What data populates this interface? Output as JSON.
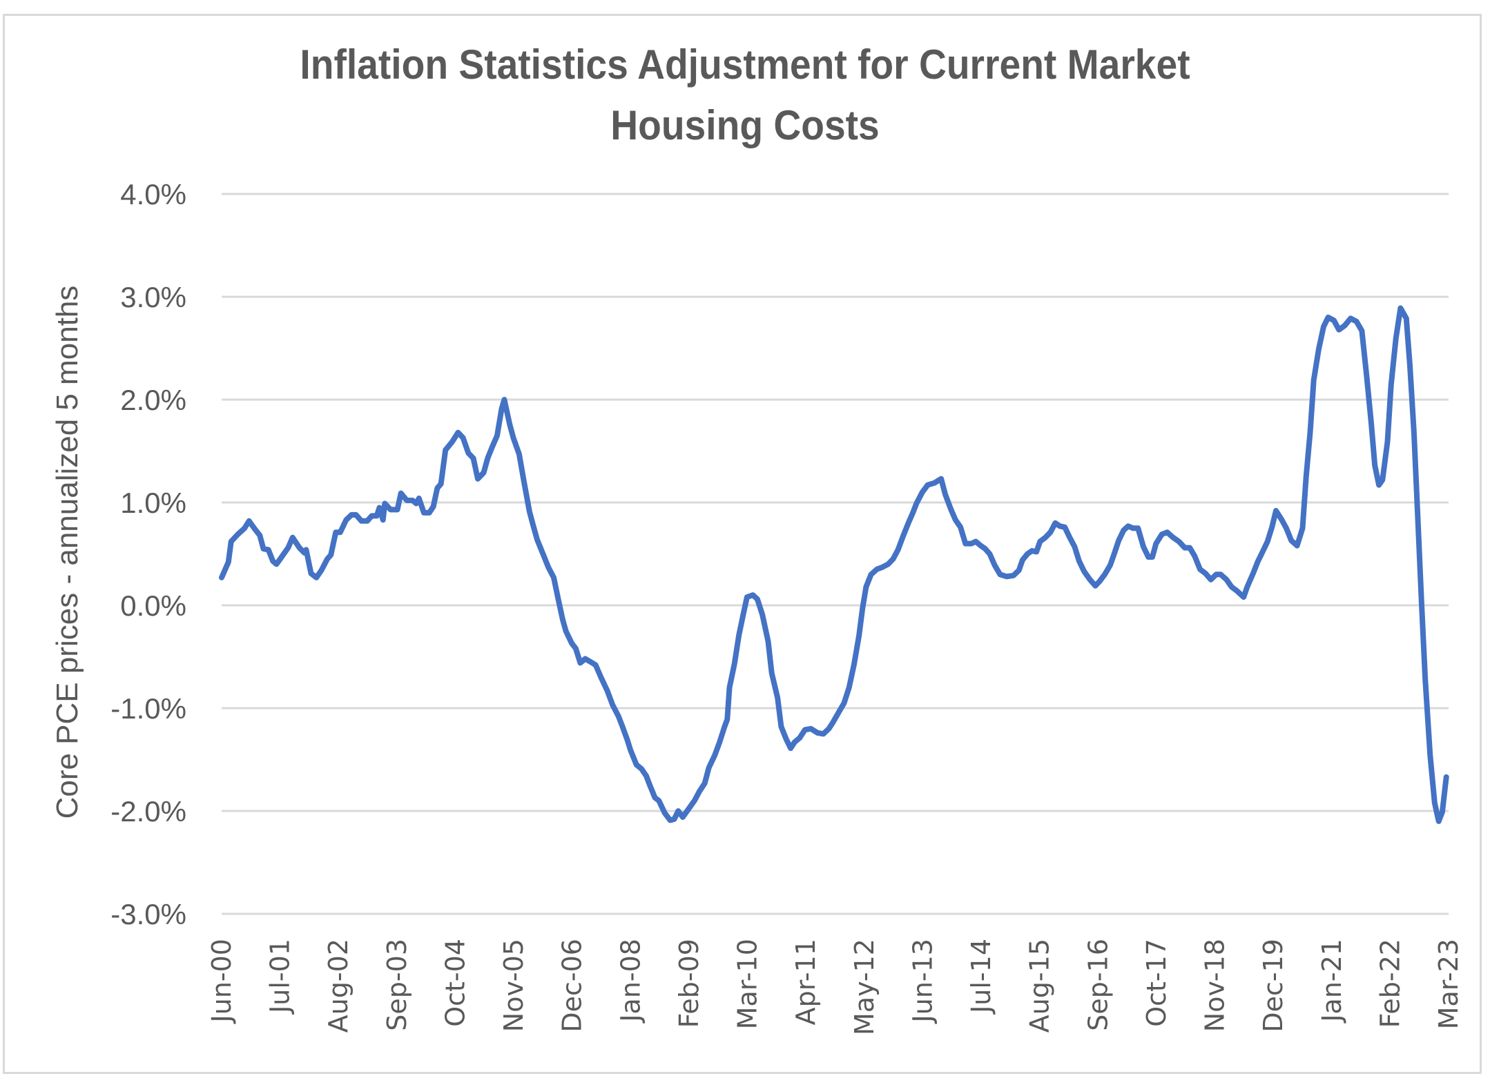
{
  "chart_data": {
    "type": "line",
    "title": "Inflation Statistics Adjustment for Current Market Housing Costs",
    "title_lines": [
      "Inflation Statistics Adjustment for Current Market",
      "Housing Costs"
    ],
    "xlabel": "",
    "ylabel": "Core PCE prices - annualized 5 months",
    "ylim": [
      -3.0,
      4.0
    ],
    "yticks": [
      4.0,
      3.0,
      2.0,
      1.0,
      0.0,
      -1.0,
      -2.0,
      -3.0
    ],
    "ytick_labels": [
      "4.0%",
      "3.0%",
      "2.0%",
      "1.0%",
      "0.0%",
      "-1.0%",
      "-2.0%",
      "-3.0%"
    ],
    "xlim_months": [
      0,
      273
    ],
    "x_start": "Jun-00",
    "x_end": "Mar-23",
    "xtick_labels": [
      "Jun-00",
      "Jul-01",
      "Aug-02",
      "Sep-03",
      "Oct-04",
      "Nov-05",
      "Dec-06",
      "Jan-08",
      "Feb-09",
      "Mar-10",
      "Apr-11",
      "May-12",
      "Jun-13",
      "Jul-14",
      "Aug-15",
      "Sep-16",
      "Oct-17",
      "Nov-18",
      "Dec-19",
      "Jan-21",
      "Feb-22",
      "Mar-23"
    ],
    "xtick_months": [
      0,
      13,
      26,
      39,
      52,
      65,
      78,
      91,
      104,
      117,
      130,
      143,
      156,
      169,
      182,
      195,
      208,
      221,
      234,
      247,
      260,
      273
    ],
    "grid": true,
    "legend": "none",
    "series": [
      {
        "name": "Core PCE prices - annualized 5 months",
        "color": "#4472c4",
        "x_months": [
          0,
          1.5,
          2.1,
          3.6,
          5.1,
          6.1,
          7.4,
          8.5,
          9.3,
          10.4,
          11.4,
          12.2,
          13.5,
          14.8,
          15.8,
          17.3,
          18.4,
          18.8,
          19.9,
          21.1,
          22.2,
          23.5,
          24.3,
          25.4,
          26.4,
          27.7,
          28.9,
          29.9,
          31.1,
          32.4,
          33.4,
          34.5,
          35.1,
          35.9,
          36.3,
          37.6,
          39.1,
          39.9,
          41.2,
          42.5,
          43.3,
          43.9,
          45.0,
          46.2,
          47.1,
          48.0,
          48.8,
          49.8,
          51.3,
          52.6,
          53.7,
          54.9,
          56.0,
          57.0,
          58.3,
          59.2,
          60.2,
          61.3,
          62.3,
          62.9,
          64.1,
          64.9,
          66.2,
          67.2,
          68.5,
          69.3,
          70.2,
          71.5,
          72.7,
          73.9,
          74.9,
          75.9,
          76.6,
          77.9,
          78.8,
          79.8,
          80.9,
          82.1,
          83.2,
          84.4,
          85.8,
          87.0,
          88.3,
          89.1,
          90.2,
          91.0,
          92.3,
          93.4,
          94.5,
          95.1,
          96.4,
          97.3,
          98.6,
          99.8,
          100.7,
          101.6,
          102.6,
          103.9,
          105.2,
          106.3,
          107.5,
          108.4,
          109.7,
          110.8,
          111.9,
          112.5,
          113.0,
          114.1,
          115.1,
          116.0,
          116.9,
          118.2,
          119.2,
          120.3,
          121.6,
          122.4,
          123.7,
          124.5,
          125.6,
          126.6,
          127.5,
          128.6,
          129.8,
          131.1,
          132.6,
          133.9,
          135.1,
          136.0,
          137.3,
          138.5,
          139.6,
          140.7,
          141.8,
          142.6,
          143.4,
          144.5,
          145.8,
          147.0,
          148.3,
          149.4,
          150.5,
          151.7,
          152.8,
          153.8,
          154.6,
          155.9,
          157.1,
          158.6,
          160.1,
          161.0,
          162.3,
          163.3,
          164.4,
          165.5,
          166.8,
          167.8,
          168.9,
          169.9,
          170.9,
          172.0,
          173.2,
          174.7,
          176.2,
          177.4,
          178.2,
          179.3,
          180.3,
          181.3,
          182.1,
          183.3,
          184.4,
          185.5,
          186.5,
          187.6,
          188.7,
          189.8,
          190.8,
          191.9,
          193.2,
          194.4,
          195.3,
          196.5,
          197.7,
          198.6,
          199.6,
          200.7,
          201.7,
          202.8,
          203.9,
          205.1,
          206.2,
          207.1,
          207.9,
          209.2,
          210.4,
          211.7,
          213.0,
          214.3,
          215.4,
          216.5,
          217.7,
          218.9,
          220.1,
          221.3,
          222.3,
          223.6,
          224.7,
          225.9,
          227.4,
          228.2,
          229.5,
          230.6,
          231.4,
          232.7,
          233.7,
          234.6,
          235.9,
          236.9,
          238.0,
          239.3,
          240.5,
          241.3,
          242.2,
          243.0,
          244.1,
          245.2,
          246.2,
          247.5,
          248.6,
          249.9,
          251.2,
          252.5,
          253.7,
          254.8,
          255.8,
          256.6,
          257.5,
          258.3,
          259.4,
          260.2,
          261.3,
          262.3,
          263.6,
          264.4,
          265.3,
          266.1,
          267.0,
          267.8,
          268.9,
          269.9,
          270.8,
          271.6,
          272.5
        ],
        "values": [
          0.27,
          0.42,
          0.62,
          0.69,
          0.75,
          0.82,
          0.74,
          0.68,
          0.55,
          0.54,
          0.43,
          0.4,
          0.48,
          0.56,
          0.66,
          0.56,
          0.51,
          0.54,
          0.31,
          0.27,
          0.34,
          0.45,
          0.49,
          0.71,
          0.71,
          0.83,
          0.88,
          0.88,
          0.82,
          0.82,
          0.87,
          0.87,
          0.95,
          0.83,
          0.99,
          0.93,
          0.93,
          1.09,
          1.02,
          1.02,
          0.99,
          1.04,
          0.9,
          0.9,
          0.96,
          1.14,
          1.18,
          1.51,
          1.59,
          1.68,
          1.63,
          1.48,
          1.43,
          1.23,
          1.29,
          1.43,
          1.54,
          1.65,
          1.91,
          2.0,
          1.76,
          1.63,
          1.47,
          1.22,
          0.91,
          0.78,
          0.64,
          0.5,
          0.37,
          0.27,
          0.06,
          -0.14,
          -0.25,
          -0.37,
          -0.42,
          -0.56,
          -0.52,
          -0.55,
          -0.58,
          -0.7,
          -0.83,
          -0.97,
          -1.08,
          -1.17,
          -1.3,
          -1.41,
          -1.55,
          -1.59,
          -1.66,
          -1.73,
          -1.87,
          -1.9,
          -2.02,
          -2.09,
          -2.08,
          -2.0,
          -2.06,
          -1.98,
          -1.9,
          -1.81,
          -1.73,
          -1.58,
          -1.46,
          -1.33,
          -1.18,
          -1.11,
          -0.8,
          -0.57,
          -0.29,
          -0.1,
          0.08,
          0.1,
          0.06,
          -0.09,
          -0.35,
          -0.66,
          -0.9,
          -1.18,
          -1.3,
          -1.39,
          -1.33,
          -1.29,
          -1.21,
          -1.2,
          -1.24,
          -1.25,
          -1.2,
          -1.14,
          -1.04,
          -0.95,
          -0.8,
          -0.58,
          -0.3,
          -0.03,
          0.18,
          0.3,
          0.35,
          0.37,
          0.4,
          0.45,
          0.54,
          0.68,
          0.8,
          0.9,
          0.99,
          1.1,
          1.17,
          1.19,
          1.23,
          1.08,
          0.93,
          0.83,
          0.76,
          0.6,
          0.6,
          0.62,
          0.58,
          0.55,
          0.5,
          0.39,
          0.3,
          0.28,
          0.29,
          0.34,
          0.44,
          0.5,
          0.53,
          0.52,
          0.62,
          0.66,
          0.71,
          0.8,
          0.77,
          0.76,
          0.66,
          0.57,
          0.43,
          0.33,
          0.25,
          0.19,
          0.23,
          0.3,
          0.39,
          0.5,
          0.63,
          0.73,
          0.77,
          0.75,
          0.75,
          0.57,
          0.47,
          0.47,
          0.6,
          0.69,
          0.71,
          0.66,
          0.62,
          0.56,
          0.56,
          0.48,
          0.35,
          0.31,
          0.25,
          0.3,
          0.3,
          0.25,
          0.18,
          0.14,
          0.08,
          0.18,
          0.31,
          0.43,
          0.5,
          0.62,
          0.76,
          0.92,
          0.83,
          0.75,
          0.63,
          0.58,
          0.75,
          1.25,
          1.68,
          2.19,
          2.49,
          2.71,
          2.8,
          2.77,
          2.68,
          2.72,
          2.79,
          2.76,
          2.67,
          2.22,
          1.77,
          1.36,
          1.17,
          1.22,
          1.59,
          2.14,
          2.6,
          2.89,
          2.79,
          2.33,
          1.68,
          0.9,
          0.02,
          -0.72,
          -1.46,
          -1.92,
          -2.1,
          -2.01,
          -1.67
        ]
      }
    ]
  }
}
